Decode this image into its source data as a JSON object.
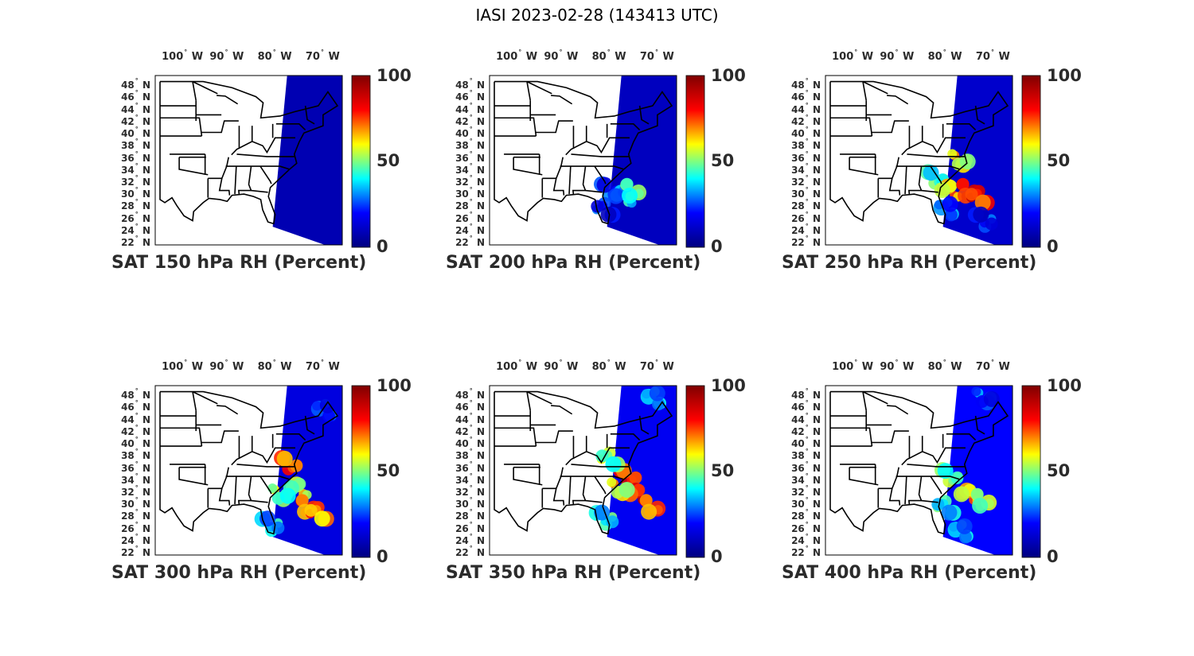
{
  "figure": {
    "title": "IASI 2023-02-28 (143413 UTC)"
  },
  "colormap": {
    "name": "jet",
    "stops": [
      "#00007f",
      "#0000ff",
      "#00ffff",
      "#ffff00",
      "#ff0000",
      "#7f0000"
    ]
  },
  "colorbar": {
    "ticks": [
      "100",
      "50",
      "0"
    ],
    "range": [
      0,
      100
    ]
  },
  "axes": {
    "lon_ticks": [
      {
        "deg": "100",
        "dir": "W"
      },
      {
        "deg": "90",
        "dir": "W"
      },
      {
        "deg": "80",
        "dir": "W"
      },
      {
        "deg": "70",
        "dir": "W"
      }
    ],
    "lat_ticks": [
      {
        "deg": "48",
        "dir": "N"
      },
      {
        "deg": "46",
        "dir": "N"
      },
      {
        "deg": "44",
        "dir": "N"
      },
      {
        "deg": "42",
        "dir": "N"
      },
      {
        "deg": "40",
        "dir": "N"
      },
      {
        "deg": "38",
        "dir": "N"
      },
      {
        "deg": "36",
        "dir": "N"
      },
      {
        "deg": "34",
        "dir": "N"
      },
      {
        "deg": "32",
        "dir": "N"
      },
      {
        "deg": "30",
        "dir": "N"
      },
      {
        "deg": "28",
        "dir": "N"
      },
      {
        "deg": "26",
        "dir": "N"
      },
      {
        "deg": "24",
        "dir": "N"
      },
      {
        "deg": "22",
        "dir": "N"
      }
    ]
  },
  "panels": [
    {
      "title": "SAT 150 hPa RH (Percent)",
      "level": 150,
      "background_rh": 8,
      "features": []
    },
    {
      "title": "SAT 200 hPa RH (Percent)",
      "level": 200,
      "background_rh": 10,
      "features": [
        {
          "lon": -80,
          "lat": 31,
          "rh": 35
        },
        {
          "lon": -77,
          "lat": 30,
          "rh": 45
        },
        {
          "lon": -75,
          "lat": 31,
          "rh": 60
        },
        {
          "lon": -81,
          "lat": 28,
          "rh": 30
        }
      ]
    },
    {
      "title": "SAT 250 hPa RH (Percent)",
      "level": 250,
      "background_rh": 12,
      "features": [
        {
          "lon": -82,
          "lat": 33,
          "rh": 55
        },
        {
          "lon": -79,
          "lat": 31,
          "rh": 75
        },
        {
          "lon": -75,
          "lat": 31,
          "rh": 95
        },
        {
          "lon": -73,
          "lat": 30,
          "rh": 90
        },
        {
          "lon": -77,
          "lat": 36,
          "rh": 70
        },
        {
          "lon": -80,
          "lat": 28,
          "rh": 40
        },
        {
          "lon": -72,
          "lat": 26,
          "rh": 30
        }
      ]
    },
    {
      "title": "SAT 300 hPa RH (Percent)",
      "level": 300,
      "background_rh": 15,
      "features": [
        {
          "lon": -77,
          "lat": 37,
          "rh": 85
        },
        {
          "lon": -75,
          "lat": 33,
          "rh": 65
        },
        {
          "lon": -73,
          "lat": 30,
          "rh": 85
        },
        {
          "lon": -71,
          "lat": 29,
          "rh": 80
        },
        {
          "lon": -79,
          "lat": 32,
          "rh": 60
        },
        {
          "lon": -70,
          "lat": 46,
          "rh": 35
        },
        {
          "lon": -81,
          "lat": 27,
          "rh": 45
        }
      ]
    },
    {
      "title": "SAT 350 hPa RH (Percent)",
      "level": 350,
      "background_rh": 18,
      "features": [
        {
          "lon": -76,
          "lat": 35,
          "rh": 90
        },
        {
          "lon": -74,
          "lat": 32,
          "rh": 92
        },
        {
          "lon": -71,
          "lat": 30,
          "rh": 85
        },
        {
          "lon": -80,
          "lat": 38,
          "rh": 60
        },
        {
          "lon": -78,
          "lat": 33,
          "rh": 70
        },
        {
          "lon": -71,
          "lat": 48,
          "rh": 45
        },
        {
          "lon": -81,
          "lat": 28,
          "rh": 50
        }
      ]
    },
    {
      "title": "SAT 400 hPa RH (Percent)",
      "level": 400,
      "background_rh": 20,
      "features": [
        {
          "lon": -79,
          "lat": 35,
          "rh": 60
        },
        {
          "lon": -75,
          "lat": 32,
          "rh": 75
        },
        {
          "lon": -72,
          "lat": 31,
          "rh": 65
        },
        {
          "lon": -80,
          "lat": 30,
          "rh": 50
        },
        {
          "lon": -72,
          "lat": 48,
          "rh": 35
        },
        {
          "lon": -77,
          "lat": 26,
          "rh": 45
        }
      ]
    }
  ]
}
